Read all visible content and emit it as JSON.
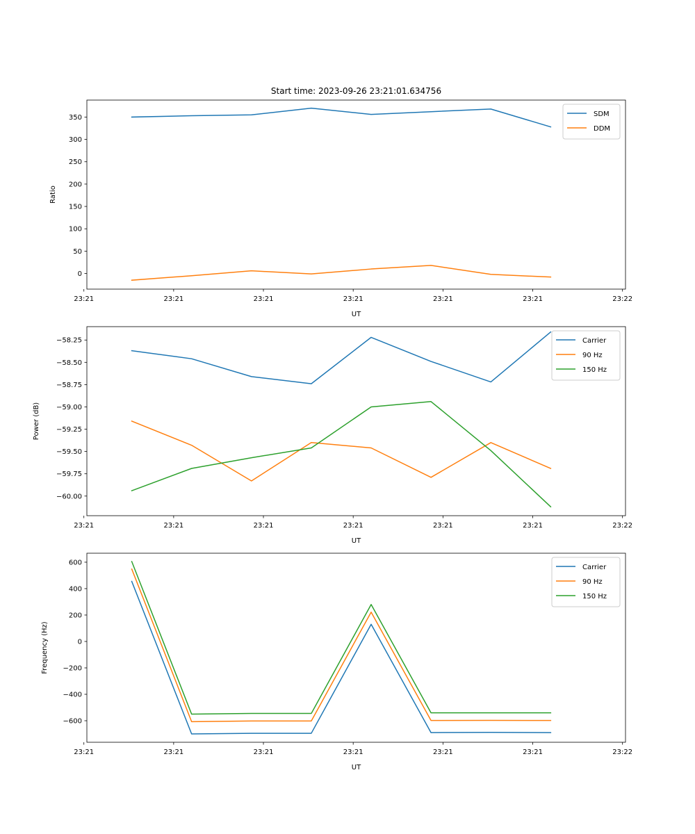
{
  "figure": {
    "title": "Start time: 2023-09-26 23:21:01.634756"
  },
  "colors": {
    "blue": "#1f77b4",
    "orange": "#ff7f0e",
    "green": "#2ca02c"
  },
  "chart_data": [
    {
      "type": "line",
      "title": "Start time: 2023-09-26 23:21:01.634756",
      "xlabel": "UT",
      "ylabel": "Ratio",
      "x": [
        1,
        2,
        3,
        4,
        5,
        6,
        7,
        8
      ],
      "xlim": [
        0.25,
        9.25
      ],
      "xticks": [
        0.2,
        1.7,
        3.2,
        4.7,
        6.2,
        7.7,
        9.2
      ],
      "xtick_labels": [
        "23:21",
        "23:21",
        "23:21",
        "23:21",
        "23:21",
        "23:21",
        "23:22"
      ],
      "ylim": [
        -35,
        388
      ],
      "yticks": [
        0,
        50,
        100,
        150,
        200,
        250,
        300,
        350
      ],
      "ytick_labels": [
        "0",
        "50",
        "100",
        "150",
        "200",
        "250",
        "300",
        "350"
      ],
      "legend": "top-right",
      "series": [
        {
          "name": "SDM",
          "color": "blue",
          "values": [
            350,
            353,
            355,
            370,
            356,
            362,
            368,
            328
          ]
        },
        {
          "name": "DDM",
          "color": "orange",
          "values": [
            -15,
            -5,
            6,
            -1,
            10,
            18,
            -2,
            -8
          ]
        }
      ]
    },
    {
      "type": "line",
      "title": "",
      "xlabel": "UT",
      "ylabel": "Power (dB)",
      "x": [
        1,
        2,
        3,
        4,
        5,
        6,
        7,
        8
      ],
      "xlim": [
        0.25,
        9.25
      ],
      "xticks": [
        0.2,
        1.7,
        3.2,
        4.7,
        6.2,
        7.7,
        9.2
      ],
      "xtick_labels": [
        "23:21",
        "23:21",
        "23:21",
        "23:21",
        "23:21",
        "23:21",
        "23:22"
      ],
      "ylim": [
        -60.22,
        -58.1
      ],
      "yticks": [
        -60.0,
        -59.75,
        -59.5,
        -59.25,
        -59.0,
        -58.75,
        -58.5,
        -58.25
      ],
      "ytick_labels": [
        "−60.00",
        "−59.75",
        "−59.50",
        "−59.25",
        "−59.00",
        "−58.75",
        "−58.50",
        "−58.25"
      ],
      "legend": "top-right",
      "series": [
        {
          "name": "Carrier",
          "color": "blue",
          "values": [
            -58.37,
            -58.46,
            -58.66,
            -58.74,
            -58.22,
            -58.49,
            -58.72,
            -58.16
          ]
        },
        {
          "name": "90 Hz",
          "color": "orange",
          "values": [
            -59.16,
            -59.43,
            -59.83,
            -59.4,
            -59.46,
            -59.79,
            -59.4,
            -59.69
          ]
        },
        {
          "name": "150 Hz",
          "color": "green",
          "values": [
            -59.94,
            -59.69,
            -59.57,
            -59.46,
            -59.0,
            -58.94,
            -59.49,
            -60.12
          ]
        }
      ]
    },
    {
      "type": "line",
      "title": "",
      "xlabel": "UT",
      "ylabel": "Frequency (Hz)",
      "x": [
        1,
        2,
        3,
        4,
        5,
        6,
        7,
        8
      ],
      "xlim": [
        0.25,
        9.25
      ],
      "xticks": [
        0.2,
        1.7,
        3.2,
        4.7,
        6.2,
        7.7,
        9.2
      ],
      "xtick_labels": [
        "23:21",
        "23:21",
        "23:21",
        "23:21",
        "23:21",
        "23:21",
        "23:22"
      ],
      "ylim": [
        -763,
        668
      ],
      "yticks": [
        -600,
        -400,
        -200,
        0,
        200,
        400,
        600
      ],
      "ytick_labels": [
        "−600",
        "−400",
        "−200",
        "0",
        "200",
        "400",
        "600"
      ],
      "legend": "top-right",
      "series": [
        {
          "name": "Carrier",
          "color": "blue",
          "values": [
            455,
            -700,
            -695,
            -695,
            130,
            -690,
            -688,
            -690
          ]
        },
        {
          "name": "90 Hz",
          "color": "orange",
          "values": [
            548,
            -607,
            -602,
            -602,
            222,
            -598,
            -597,
            -598
          ]
        },
        {
          "name": "150 Hz",
          "color": "green",
          "values": [
            605,
            -550,
            -545,
            -545,
            280,
            -540,
            -540,
            -540
          ]
        }
      ]
    }
  ]
}
